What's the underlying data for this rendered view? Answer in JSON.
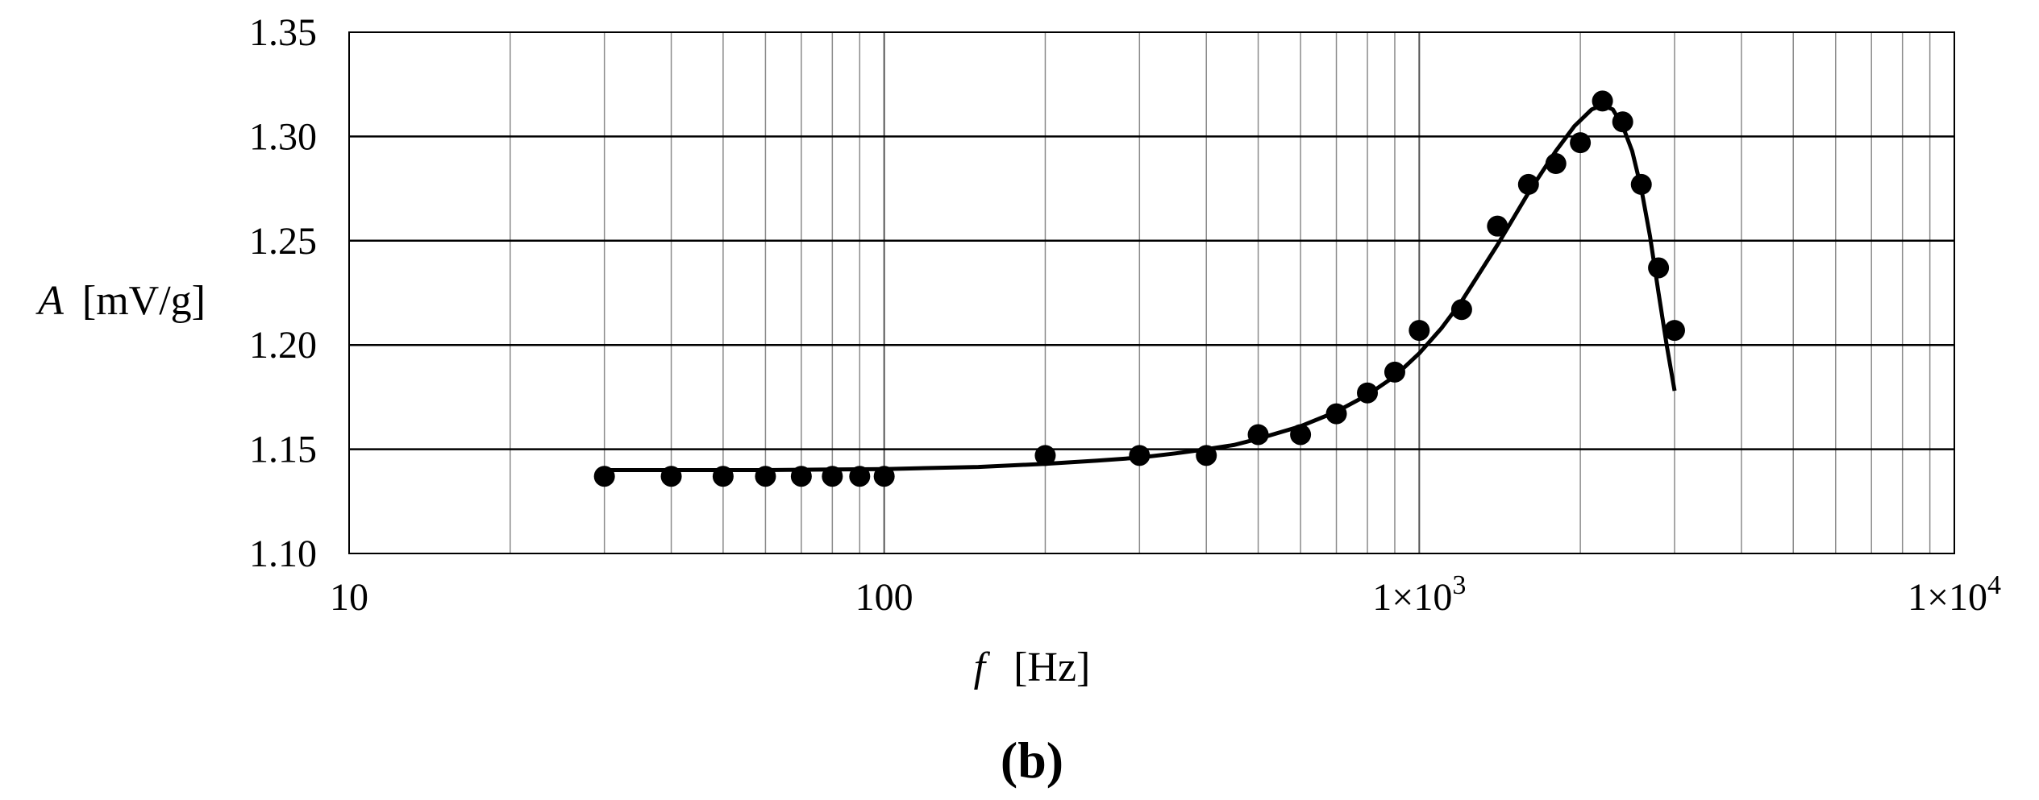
{
  "panel_label": {
    "open": "(",
    "letter": "b",
    "close": ")"
  },
  "chart_data": {
    "type": "scatter",
    "xlabel": {
      "var": "f",
      "unit": "[Hz]"
    },
    "ylabel": {
      "var": "A",
      "unit": "[mV/g]"
    },
    "x_scale": "log",
    "xlim": [
      10,
      10000
    ],
    "ylim": [
      1.1,
      1.35
    ],
    "x_ticks": [
      {
        "value": 10,
        "label": "10"
      },
      {
        "value": 100,
        "label": "100"
      },
      {
        "value": 1000,
        "label": "1×10",
        "exp": "3"
      },
      {
        "value": 10000,
        "label": "1×10",
        "exp": "4"
      }
    ],
    "y_ticks": [
      {
        "value": 1.1,
        "label": "1.10"
      },
      {
        "value": 1.15,
        "label": "1.15"
      },
      {
        "value": 1.2,
        "label": "1.20"
      },
      {
        "value": 1.25,
        "label": "1.25"
      },
      {
        "value": 1.3,
        "label": "1.30"
      },
      {
        "value": 1.35,
        "label": "1.35"
      }
    ],
    "grid": true,
    "legend": "none",
    "series": [
      {
        "kind": "points",
        "color": "#000000",
        "points": [
          {
            "x": 30,
            "y": 1.137
          },
          {
            "x": 40,
            "y": 1.137
          },
          {
            "x": 50,
            "y": 1.137
          },
          {
            "x": 60,
            "y": 1.137
          },
          {
            "x": 70,
            "y": 1.137
          },
          {
            "x": 80,
            "y": 1.137
          },
          {
            "x": 90,
            "y": 1.137
          },
          {
            "x": 100,
            "y": 1.137
          },
          {
            "x": 200,
            "y": 1.147
          },
          {
            "x": 300,
            "y": 1.147
          },
          {
            "x": 400,
            "y": 1.147
          },
          {
            "x": 500,
            "y": 1.157
          },
          {
            "x": 600,
            "y": 1.157
          },
          {
            "x": 700,
            "y": 1.167
          },
          {
            "x": 800,
            "y": 1.177
          },
          {
            "x": 900,
            "y": 1.187
          },
          {
            "x": 1000,
            "y": 1.207
          },
          {
            "x": 1200,
            "y": 1.217
          },
          {
            "x": 1400,
            "y": 1.257
          },
          {
            "x": 1600,
            "y": 1.277
          },
          {
            "x": 1800,
            "y": 1.287
          },
          {
            "x": 2000,
            "y": 1.297
          },
          {
            "x": 2200,
            "y": 1.317
          },
          {
            "x": 2400,
            "y": 1.307
          },
          {
            "x": 2600,
            "y": 1.277
          },
          {
            "x": 2800,
            "y": 1.237
          },
          {
            "x": 3000,
            "y": 1.207
          }
        ]
      },
      {
        "kind": "line",
        "color": "#000000",
        "points": [
          {
            "x": 30,
            "y": 1.14
          },
          {
            "x": 60,
            "y": 1.14
          },
          {
            "x": 100,
            "y": 1.1405
          },
          {
            "x": 150,
            "y": 1.1415
          },
          {
            "x": 200,
            "y": 1.143
          },
          {
            "x": 250,
            "y": 1.1445
          },
          {
            "x": 300,
            "y": 1.146
          },
          {
            "x": 350,
            "y": 1.148
          },
          {
            "x": 400,
            "y": 1.15
          },
          {
            "x": 450,
            "y": 1.152
          },
          {
            "x": 500,
            "y": 1.155
          },
          {
            "x": 600,
            "y": 1.161
          },
          {
            "x": 700,
            "y": 1.168
          },
          {
            "x": 800,
            "y": 1.176
          },
          {
            "x": 900,
            "y": 1.185
          },
          {
            "x": 1000,
            "y": 1.196
          },
          {
            "x": 1100,
            "y": 1.208
          },
          {
            "x": 1200,
            "y": 1.221
          },
          {
            "x": 1400,
            "y": 1.248
          },
          {
            "x": 1600,
            "y": 1.273
          },
          {
            "x": 1800,
            "y": 1.293
          },
          {
            "x": 1950,
            "y": 1.305
          },
          {
            "x": 2100,
            "y": 1.313
          },
          {
            "x": 2200,
            "y": 1.315
          },
          {
            "x": 2300,
            "y": 1.313
          },
          {
            "x": 2400,
            "y": 1.305
          },
          {
            "x": 2500,
            "y": 1.293
          },
          {
            "x": 2600,
            "y": 1.275
          },
          {
            "x": 2700,
            "y": 1.252
          },
          {
            "x": 2800,
            "y": 1.225
          },
          {
            "x": 2900,
            "y": 1.2
          },
          {
            "x": 3000,
            "y": 1.178
          }
        ]
      }
    ]
  }
}
